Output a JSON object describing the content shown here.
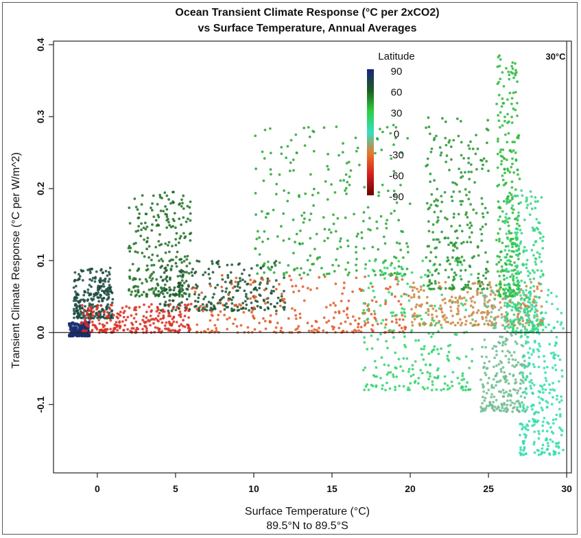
{
  "chart_data": {
    "type": "scatter",
    "title": "Ocean Transient Climate Response (°C per 2xCO2)",
    "subtitle": "vs Surface Temperature, Annual Averages",
    "xlabel": "Surface Temperature (°C)",
    "xlabel2": "89.5°N to 89.5°S",
    "ylabel": "Transient Climate Response (°C per W/m^2)",
    "xlim": [
      -2.8,
      30.3
    ],
    "ylim": [
      -0.195,
      0.405
    ],
    "x_ticks": [
      0,
      5,
      10,
      15,
      20,
      25,
      30
    ],
    "y_ticks": [
      -0.1,
      0.0,
      0.1,
      0.2,
      0.3,
      0.4
    ],
    "y_tick_labels": [
      "-0.1",
      "0.0",
      "0.1",
      "0.2",
      "0.3",
      "0.4"
    ],
    "reference_lines": {
      "horizontal_y": 0.0,
      "vertical_x": 30,
      "vertical_label": "30°C"
    },
    "colorbar": {
      "title": "Latitude",
      "tick_labels": [
        "90",
        "60",
        "30",
        "0",
        "-30",
        "-60",
        "-90"
      ],
      "colors_top_to_bottom": [
        "#1a237e",
        "#1b5e20",
        "#2ecc40",
        "#33e0c0",
        "#e8752a",
        "#d62020",
        "#6b0000"
      ]
    },
    "point_clouds": [
      {
        "x_range": [
          -1.8,
          -0.5
        ],
        "y_range": [
          -0.005,
          0.015
        ],
        "latitude": 85
      },
      {
        "x_range": [
          -1.5,
          1.0
        ],
        "y_range": [
          0.02,
          0.09
        ],
        "latitude": 70
      },
      {
        "x_range": [
          -1.0,
          6.0
        ],
        "y_range": [
          0.0,
          0.04
        ],
        "latitude": -55
      },
      {
        "x_range": [
          2.0,
          6.0
        ],
        "y_range": [
          0.05,
          0.2
        ],
        "latitude": 55
      },
      {
        "x_range": [
          4.0,
          12.0
        ],
        "y_range": [
          0.03,
          0.1
        ],
        "latitude": 65
      },
      {
        "x_range": [
          6.0,
          20.0
        ],
        "y_range": [
          0.0,
          0.08
        ],
        "latitude": -40
      },
      {
        "x_range": [
          10.0,
          20.0
        ],
        "y_range": [
          0.08,
          0.29
        ],
        "latitude": 40
      },
      {
        "x_range": [
          17.0,
          24.0
        ],
        "y_range": [
          -0.08,
          0.1
        ],
        "latitude": 20
      },
      {
        "x_range": [
          20.0,
          28.5
        ],
        "y_range": [
          0.01,
          0.07
        ],
        "latitude": -25
      },
      {
        "x_range": [
          24.5,
          27.5
        ],
        "y_range": [
          -0.11,
          0.06
        ],
        "latitude": -10
      },
      {
        "x_range": [
          25.5,
          27.0
        ],
        "y_range": [
          0.05,
          0.385
        ],
        "latitude": 35
      },
      {
        "x_range": [
          26.0,
          28.5
        ],
        "y_range": [
          0.0,
          0.2
        ],
        "latitude": 15
      },
      {
        "x_range": [
          27.0,
          29.8
        ],
        "y_range": [
          -0.17,
          0.06
        ],
        "latitude": 5
      },
      {
        "x_range": [
          21.0,
          25.0
        ],
        "y_range": [
          0.06,
          0.3
        ],
        "latitude": 45
      }
    ]
  }
}
